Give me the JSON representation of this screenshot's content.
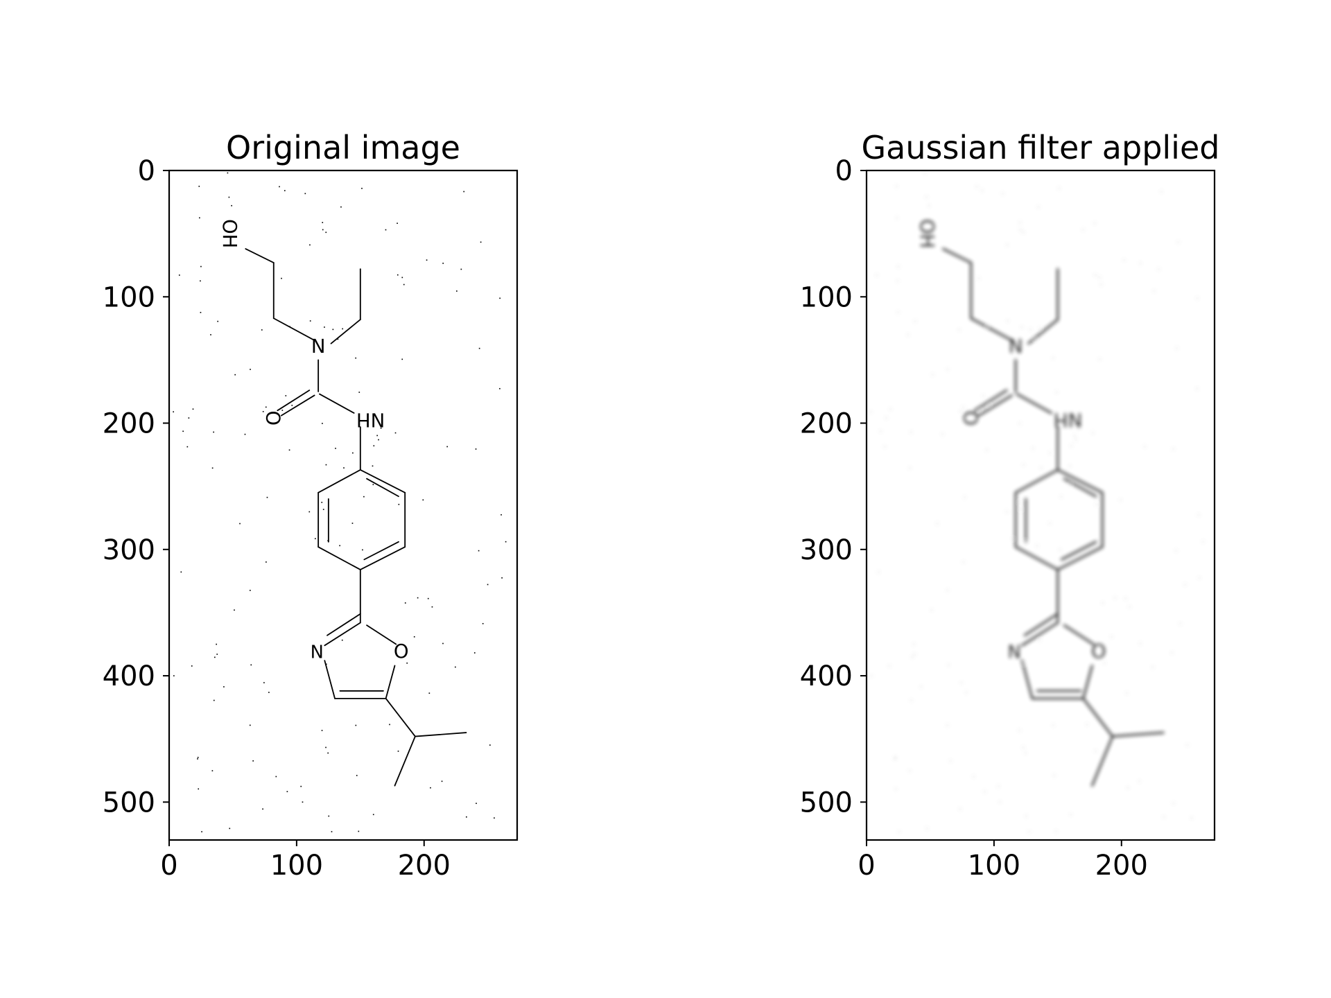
{
  "chart_data": [
    {
      "type": "image",
      "title": "Original image",
      "render_style": "sharp",
      "xlim": [
        0,
        273
      ],
      "ylim": [
        530,
        0
      ],
      "xticks": [
        0,
        100,
        200
      ],
      "yticks": [
        0,
        100,
        200,
        300,
        400,
        500
      ],
      "atom_labels": [
        "OH",
        "N",
        "O",
        "NH",
        "N",
        "O"
      ]
    },
    {
      "type": "image",
      "title": "Gaussian filter applied",
      "render_style": "blurred",
      "xlim": [
        0,
        273
      ],
      "ylim": [
        530,
        0
      ],
      "xticks": [
        0,
        100,
        200
      ],
      "yticks": [
        0,
        100,
        200,
        300,
        400,
        500
      ],
      "atom_labels": [
        "OH",
        "N",
        "O",
        "NH",
        "N",
        "O"
      ]
    }
  ]
}
